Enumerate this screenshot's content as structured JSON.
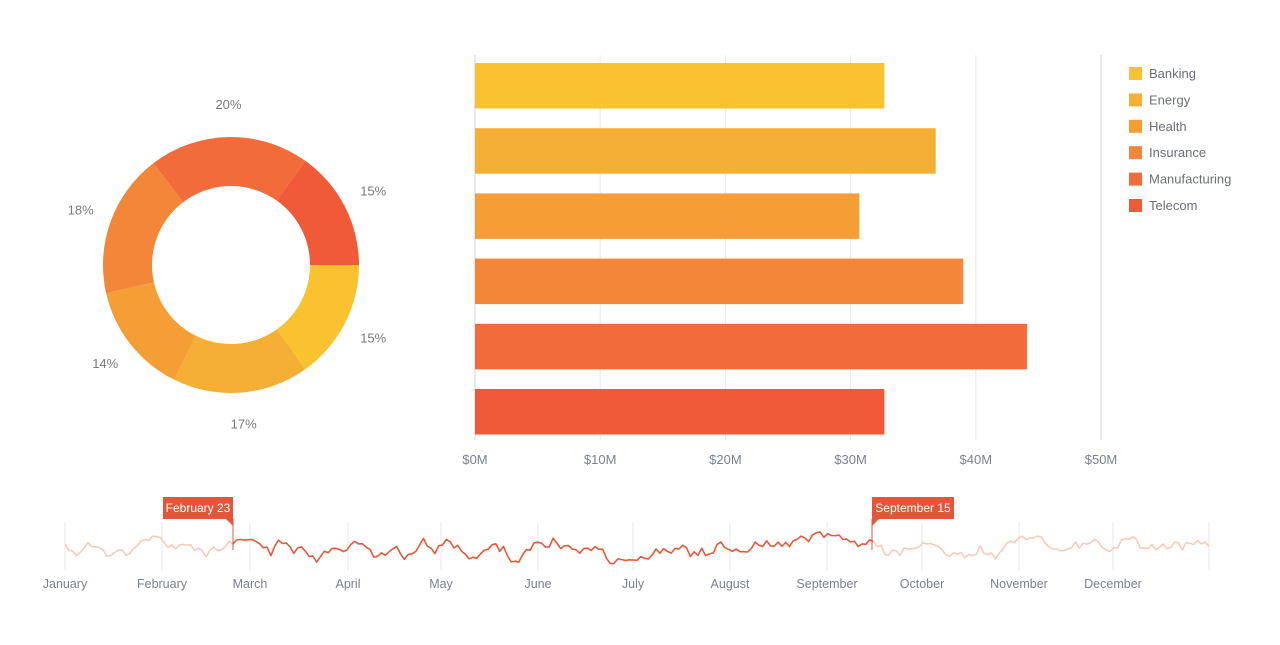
{
  "chart_data": [
    {
      "type": "pie",
      "variant": "donut",
      "title": "",
      "slices": [
        {
          "label": "Banking",
          "value": 15,
          "display": "15%",
          "color": "#F9C22E"
        },
        {
          "label": "Energy",
          "value": 17,
          "display": "17%",
          "color": "#F6AF35"
        },
        {
          "label": "Health",
          "value": 14,
          "display": "14%",
          "color": "#F59E36"
        },
        {
          "label": "Insurance",
          "value": 18,
          "display": "18%",
          "color": "#F4863A"
        },
        {
          "label": "Manufacturing",
          "value": 20,
          "display": "20%",
          "color": "#F26B3A"
        },
        {
          "label": "Telecom",
          "value": 15,
          "display": "15%",
          "color": "#F15A38"
        }
      ]
    },
    {
      "type": "bar",
      "orientation": "horizontal",
      "title": "",
      "xlabel": "",
      "ylabel": "",
      "categories": [
        "Banking",
        "Energy",
        "Health",
        "Insurance",
        "Manufacturing",
        "Telecom"
      ],
      "values": [
        32.7,
        36.8,
        30.7,
        39.0,
        44.1,
        32.7
      ],
      "colors": [
        "#F9C22E",
        "#F6AF35",
        "#F59E36",
        "#F4863A",
        "#F26B3A",
        "#F15A38"
      ],
      "xlim": [
        0,
        50
      ],
      "x_ticks": [
        "$0M",
        "$10M",
        "$20M",
        "$30M",
        "$40M",
        "$50M"
      ],
      "grid": true,
      "legend": {
        "placement": "right",
        "entries": [
          {
            "label": "Banking",
            "color": "#F9C22E"
          },
          {
            "label": "Energy",
            "color": "#F6AF35"
          },
          {
            "label": "Health",
            "color": "#F59E36"
          },
          {
            "label": "Insurance",
            "color": "#F4863A"
          },
          {
            "label": "Manufacturing",
            "color": "#F26B3A"
          },
          {
            "label": "Telecom",
            "color": "#F15A38"
          }
        ]
      }
    },
    {
      "type": "line",
      "role": "range-navigator",
      "months": [
        "January",
        "February",
        "March",
        "April",
        "May",
        "June",
        "July",
        "August",
        "September",
        "October",
        "November",
        "December"
      ],
      "selection": {
        "start": "February 23",
        "end": "September 15"
      },
      "colors": {
        "selected": "#E8573A",
        "unselected": "#F8CBB8",
        "flag": "#E4553A"
      }
    }
  ]
}
